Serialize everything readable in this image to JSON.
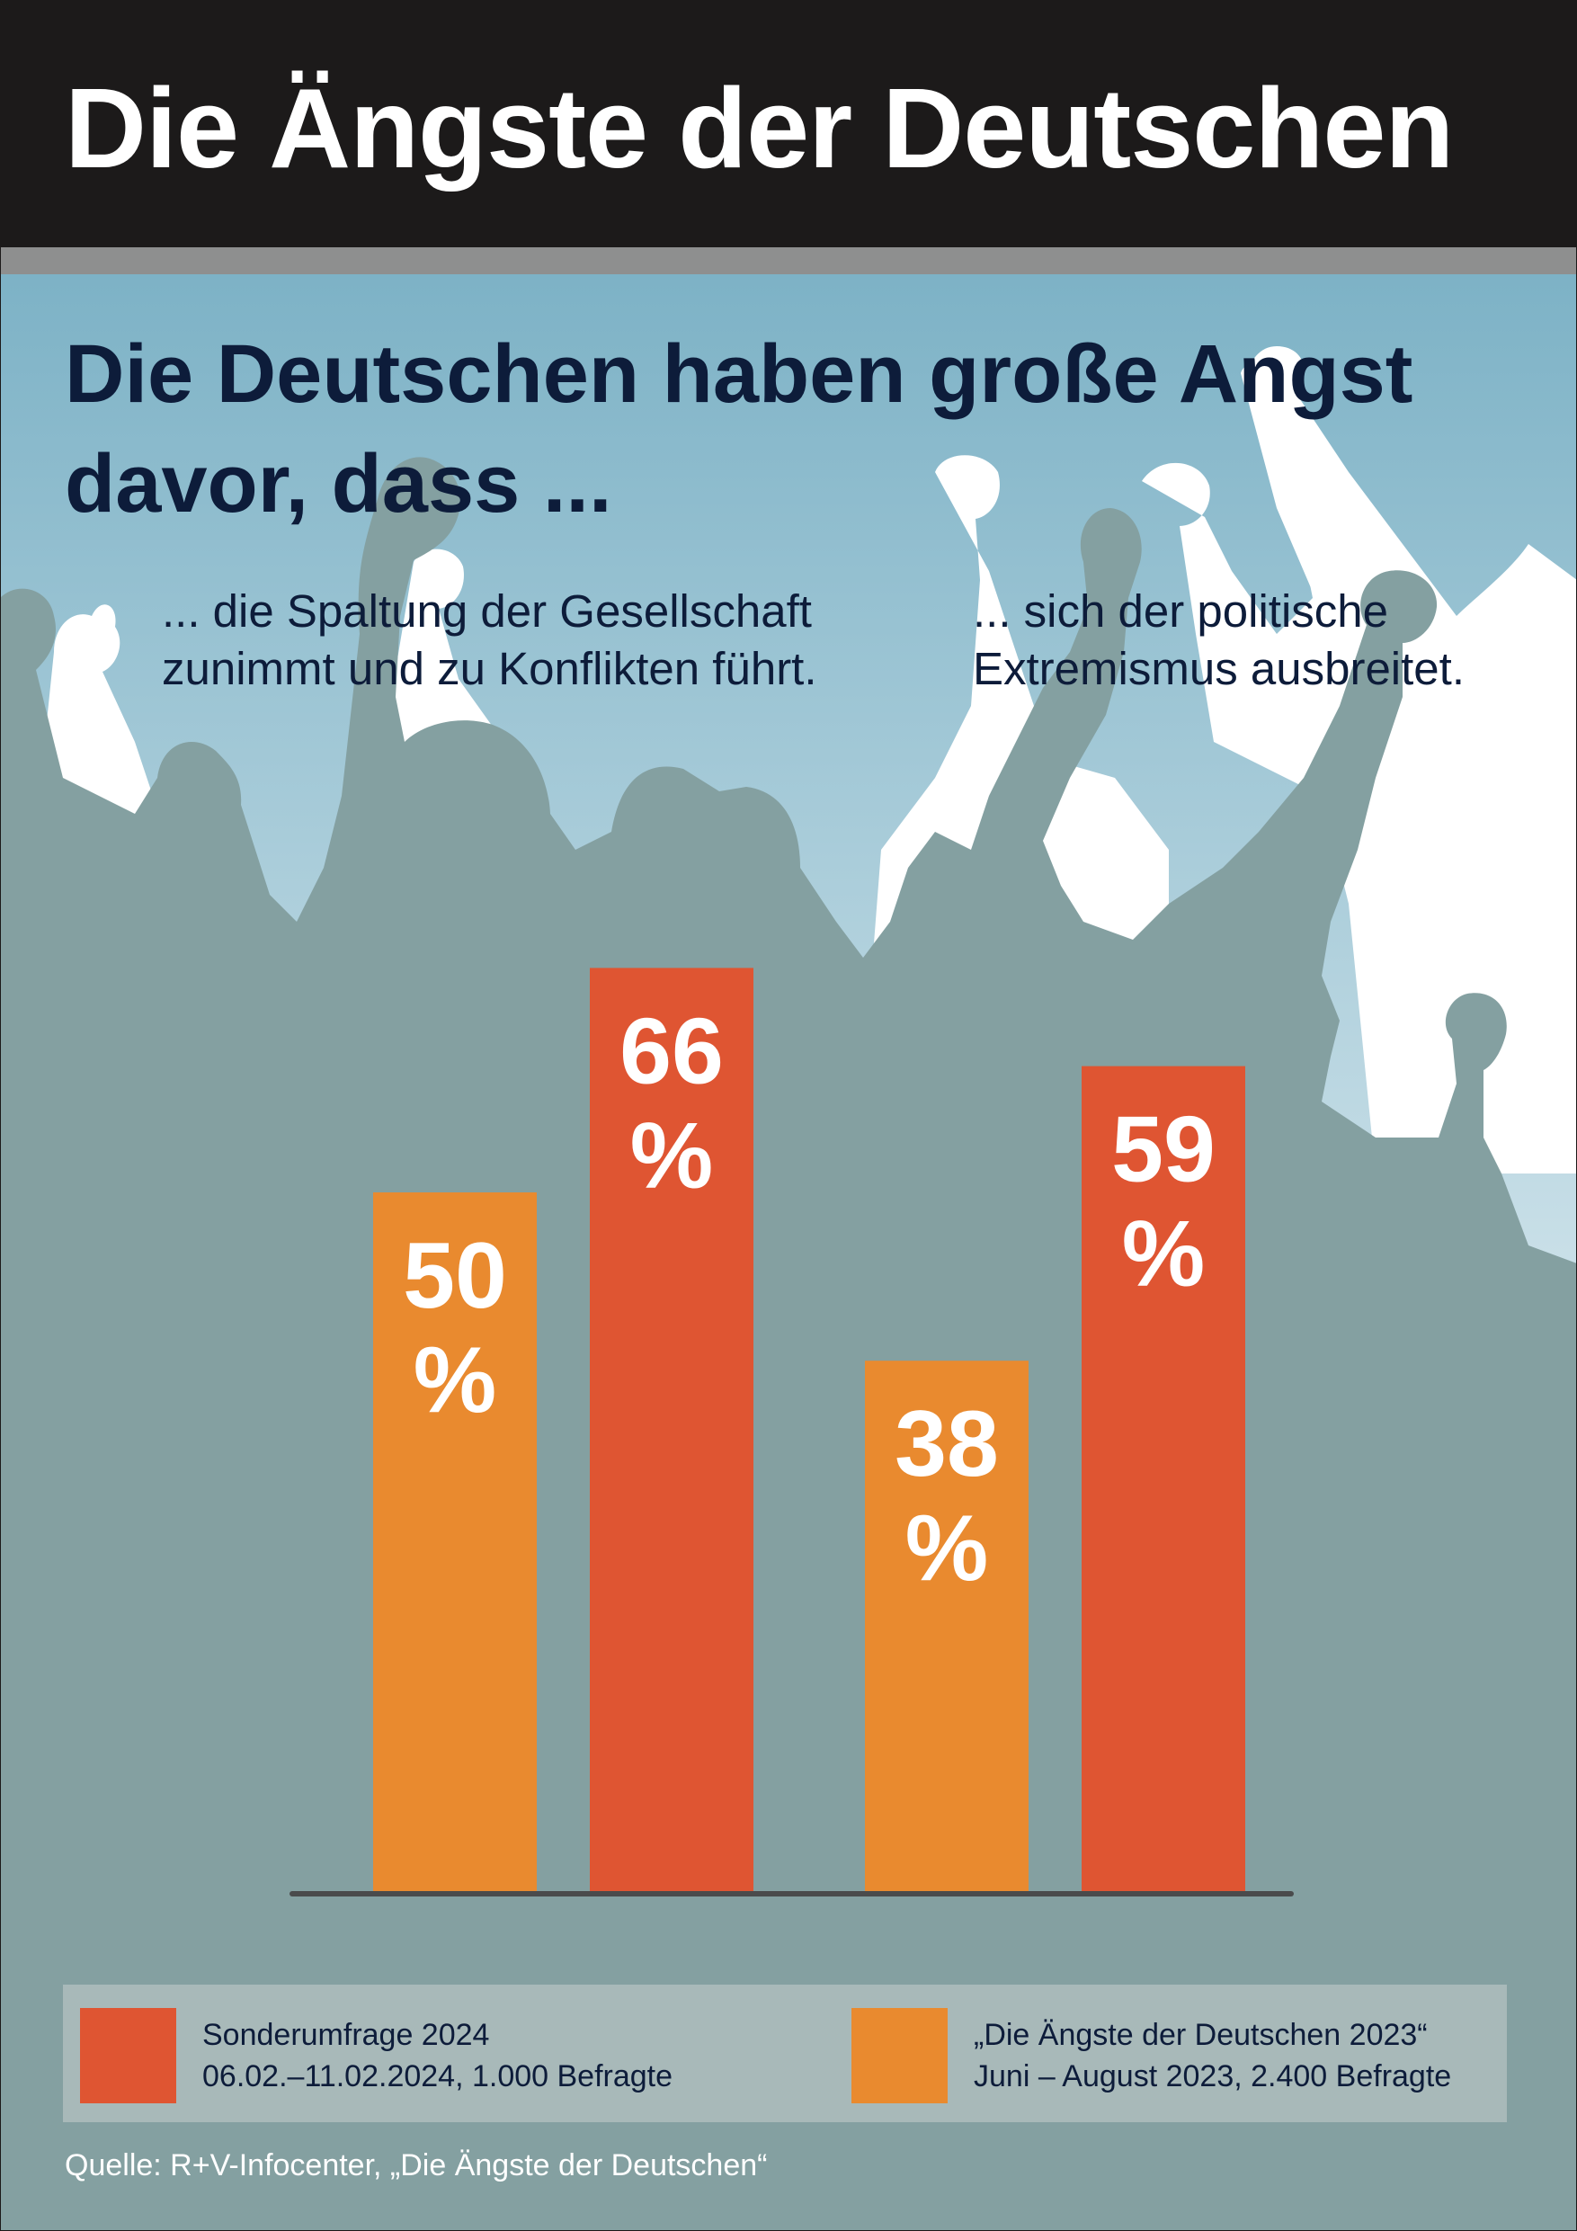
{
  "header": {
    "title": "Die Ängste der Deutschen"
  },
  "subtitle": "Die Deutschen haben große Angst davor, dass ...",
  "colors": {
    "series_2024": "#df5532",
    "series_2023": "#e98a2f",
    "crowd_dark": "#84a0a1",
    "crowd_light": "#ffffff",
    "sky_top": "#7db2c6",
    "sky_bottom": "#e9f3f6",
    "header_bg": "#1c1a1a",
    "legend_bg": "#a8b9b9"
  },
  "chart_data": {
    "type": "bar",
    "categories": [
      "... die Spaltung der Gesellschaft zunimmt und zu Konflikten führt.",
      "... sich der politische Extremismus ausbreitet."
    ],
    "series": [
      {
        "name": "„Die Ängste der Deutschen 2023“",
        "values": [
          50,
          38
        ],
        "color": "#e98a2f"
      },
      {
        "name": "Sonderumfrage 2024",
        "values": [
          66,
          59
        ],
        "color": "#df5532"
      }
    ],
    "value_labels": [
      [
        "50",
        "%"
      ],
      [
        "66",
        "%"
      ],
      [
        "38",
        "%"
      ],
      [
        "59",
        "%"
      ]
    ],
    "ylim": [
      0,
      100
    ],
    "grid": false,
    "legend_position": "bottom"
  },
  "category_labels": [
    [
      "... die Spaltung der Gesellschaft",
      "zunimmt und zu Konflikten führt."
    ],
    [
      "... sich der politische",
      "Extremismus ausbreitet."
    ]
  ],
  "legend": {
    "items": [
      {
        "color": "#df5532",
        "line1": "Sonderumfrage 2024",
        "line2": "06.02.–11.02.2024, 1.000 Befragte"
      },
      {
        "color": "#e98a2f",
        "line1": "„Die Ängste der Deutschen 2023“",
        "line2": "Juni – August 2023, 2.400 Befragte"
      }
    ]
  },
  "source": "Quelle: R+V-Infocenter, „Die Ängste der Deutschen“"
}
